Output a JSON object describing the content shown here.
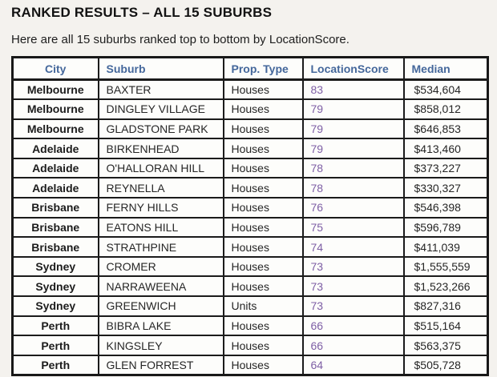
{
  "page": {
    "title": "RANKED RESULTS – ALL 15 SUBURBS",
    "subtitle": "Here are all 15 suburbs ranked top to bottom by LocationScore."
  },
  "colors": {
    "header_text": "#44679b",
    "score_text": "#7e5fa5",
    "body_text": "#262626",
    "border": "#1b1b1b",
    "page_bg": "#f4f2ee",
    "cell_bg": "#fdfdfb"
  },
  "table": {
    "columns": [
      {
        "key": "city",
        "label": "City"
      },
      {
        "key": "suburb",
        "label": "Suburb"
      },
      {
        "key": "prop_type",
        "label": "Prop. Type"
      },
      {
        "key": "location_score",
        "label": "LocationScore"
      },
      {
        "key": "median",
        "label": "Median"
      }
    ],
    "rows": [
      {
        "city": "Melbourne",
        "suburb": "BAXTER",
        "prop_type": "Houses",
        "location_score": "83",
        "median": "$534,604"
      },
      {
        "city": "Melbourne",
        "suburb": "DINGLEY VILLAGE",
        "prop_type": "Houses",
        "location_score": "79",
        "median": "$858,012"
      },
      {
        "city": "Melbourne",
        "suburb": "GLADSTONE PARK",
        "prop_type": "Houses",
        "location_score": "79",
        "median": "$646,853"
      },
      {
        "city": "Adelaide",
        "suburb": "BIRKENHEAD",
        "prop_type": "Houses",
        "location_score": "79",
        "median": "$413,460"
      },
      {
        "city": "Adelaide",
        "suburb": "O'HALLORAN HILL",
        "prop_type": "Houses",
        "location_score": "78",
        "median": "$373,227"
      },
      {
        "city": "Adelaide",
        "suburb": "REYNELLA",
        "prop_type": "Houses",
        "location_score": "78",
        "median": "$330,327"
      },
      {
        "city": "Brisbane",
        "suburb": "FERNY HILLS",
        "prop_type": "Houses",
        "location_score": "76",
        "median": "$546,398"
      },
      {
        "city": "Brisbane",
        "suburb": "EATONS HILL",
        "prop_type": "Houses",
        "location_score": "75",
        "median": "$596,789"
      },
      {
        "city": "Brisbane",
        "suburb": "STRATHPINE",
        "prop_type": "Houses",
        "location_score": "74",
        "median": "$411,039"
      },
      {
        "city": "Sydney",
        "suburb": "CROMER",
        "prop_type": "Houses",
        "location_score": "73",
        "median": "$1,555,559"
      },
      {
        "city": "Sydney",
        "suburb": "NARRAWEENA",
        "prop_type": "Houses",
        "location_score": "73",
        "median": "$1,523,266"
      },
      {
        "city": "Sydney",
        "suburb": "GREENWICH",
        "prop_type": "Units",
        "location_score": "73",
        "median": "$827,316"
      },
      {
        "city": "Perth",
        "suburb": "BIBRA LAKE",
        "prop_type": "Houses",
        "location_score": "66",
        "median": "$515,164"
      },
      {
        "city": "Perth",
        "suburb": "KINGSLEY",
        "prop_type": "Houses",
        "location_score": "66",
        "median": "$563,375"
      },
      {
        "city": "Perth",
        "suburb": "GLEN FORREST",
        "prop_type": "Houses",
        "location_score": "64",
        "median": "$505,728"
      }
    ]
  }
}
